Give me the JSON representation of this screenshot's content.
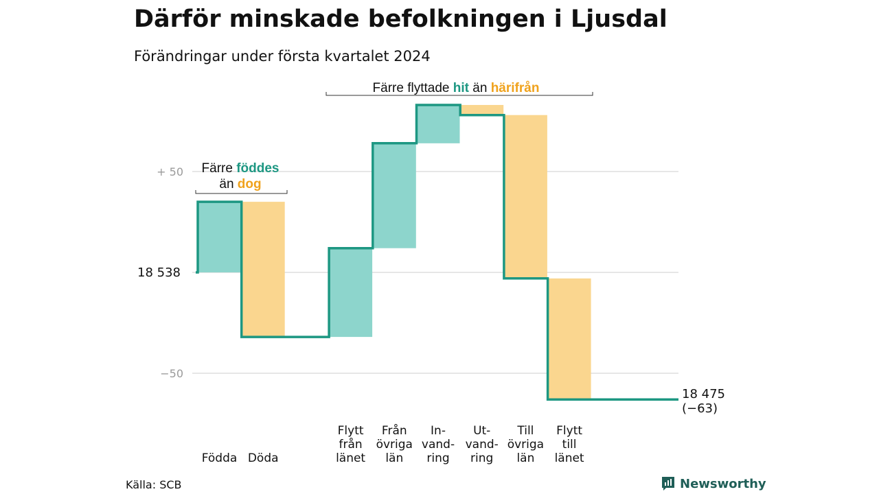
{
  "title": "Därför minskade befolkningen i Ljusdal",
  "subtitle": "Förändringar under första kvartalet 2024",
  "source": "Källa: SCB",
  "brand": "Newsworthy",
  "colors": {
    "increase": "#8dd5cc",
    "decrease": "#fad68f",
    "line": "#1d9782",
    "green_text": "#1d9782",
    "orange_text": "#f0a21c",
    "grid": "#dddddd"
  },
  "annotations": {
    "births": {
      "line1_pre": "Färre ",
      "line1_em": "föddes",
      "line2_pre": "än ",
      "line2_em": "dog"
    },
    "moves": {
      "pre": "Färre flyttade ",
      "em1": "hit",
      "mid": " än ",
      "em2": "härifrån"
    }
  },
  "chart_data": {
    "type": "bar",
    "subtype": "waterfall",
    "title": "Därför minskade befolkningen i Ljusdal",
    "subtitle": "Förändringar under första kvartalet 2024",
    "base": 18538,
    "base_label": "18  538",
    "end_value": 18475,
    "end_label_line1": "18 475",
    "end_label_line2": "(−63)",
    "y_ticks": [
      {
        "value": 50,
        "label": "+  50"
      },
      {
        "value": 0,
        "label": ""
      },
      {
        "value": -50,
        "label": "−50"
      }
    ],
    "ylim": [
      -68,
      90
    ],
    "categories": [
      {
        "label_lines": [
          "Födda"
        ],
        "delta": 35,
        "type": "increase"
      },
      {
        "label_lines": [
          "Döda"
        ],
        "delta": -67,
        "type": "decrease"
      },
      {
        "label_lines": [
          ""
        ],
        "delta": 0,
        "type": "gap"
      },
      {
        "label_lines": [
          "Flytt",
          "från",
          "länet"
        ],
        "delta": 44,
        "type": "increase"
      },
      {
        "label_lines": [
          "Från",
          "övriga",
          "län"
        ],
        "delta": 52,
        "type": "increase"
      },
      {
        "label_lines": [
          "In-",
          "vand-",
          "ring"
        ],
        "delta": 19,
        "type": "increase"
      },
      {
        "label_lines": [
          "Ut-",
          "vand-",
          "ring"
        ],
        "delta": -5,
        "type": "decrease"
      },
      {
        "label_lines": [
          "Till",
          "övriga",
          "län"
        ],
        "delta": -81,
        "type": "decrease"
      },
      {
        "label_lines": [
          "Flytt",
          "till",
          "länet"
        ],
        "delta": -60,
        "type": "decrease"
      }
    ],
    "grid": true,
    "legend": "none"
  }
}
